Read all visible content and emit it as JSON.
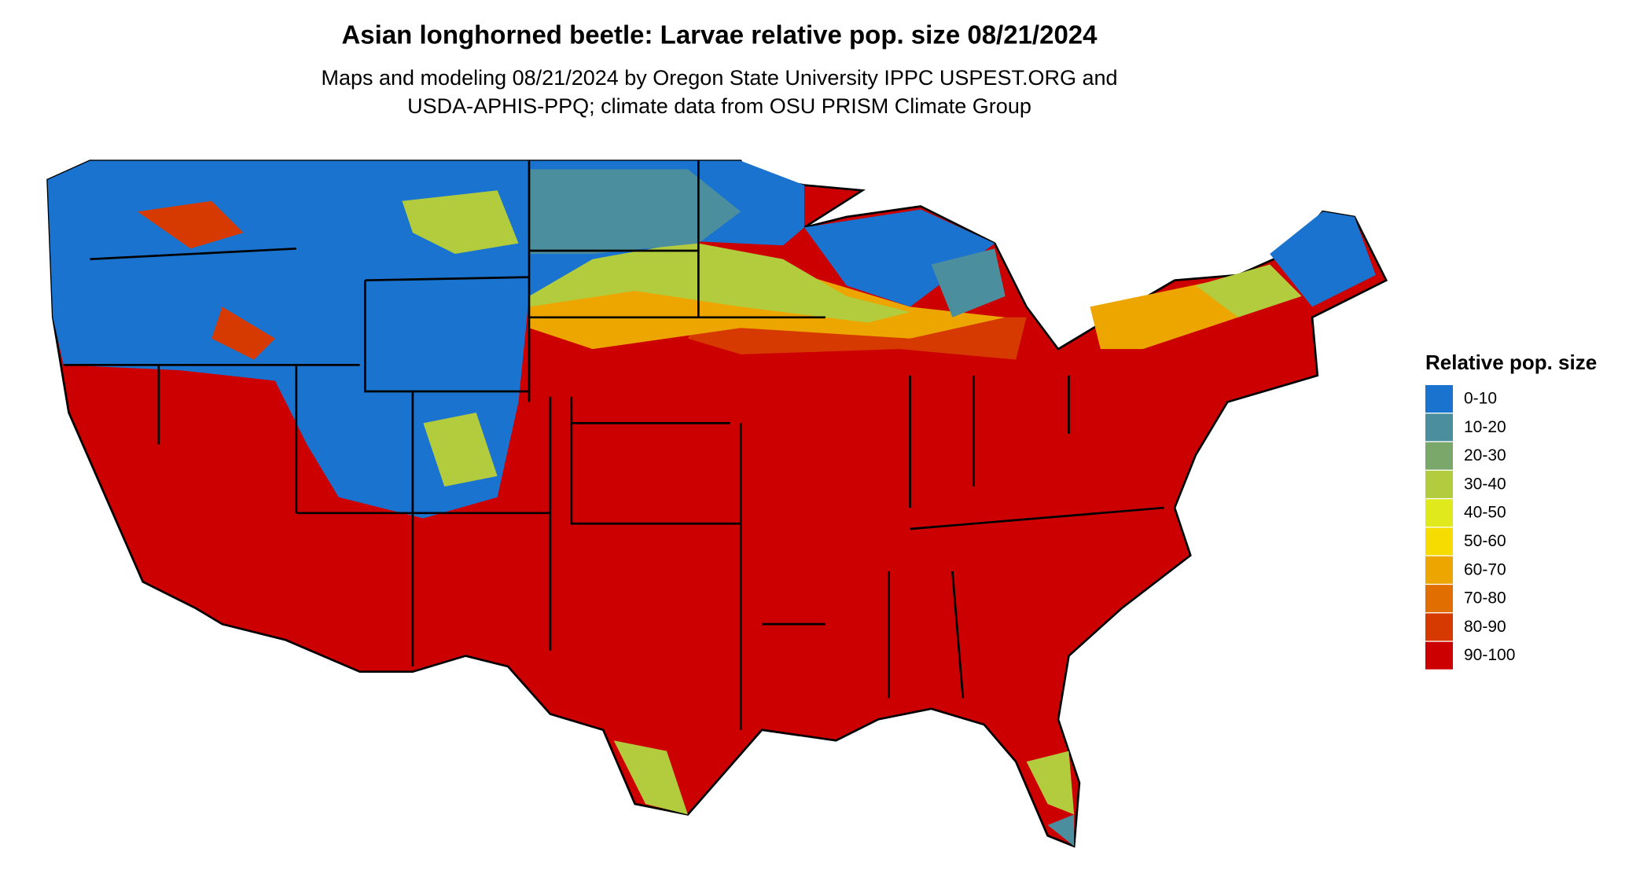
{
  "header": {
    "title": "Asian longhorned beetle: Larvae relative pop. size 08/21/2024",
    "subtitle": [
      "Maps and modeling 08/21/2024 by Oregon State University IPPC USPEST.ORG and",
      "USDA-APHIS-PPQ; climate data from OSU PRISM Climate Group"
    ]
  },
  "legend": {
    "title": "Relative pop. size",
    "items": [
      {
        "label": "0-10",
        "color": "#1a74cf"
      },
      {
        "label": "10-20",
        "color": "#4b8e9e"
      },
      {
        "label": "20-30",
        "color": "#7aa86a"
      },
      {
        "label": "30-40",
        "color": "#b3cc3e"
      },
      {
        "label": "40-50",
        "color": "#dfe91b"
      },
      {
        "label": "50-60",
        "color": "#f6dc00"
      },
      {
        "label": "60-70",
        "color": "#eda600"
      },
      {
        "label": "70-80",
        "color": "#e06e00"
      },
      {
        "label": "80-90",
        "color": "#d63a00"
      },
      {
        "label": "90-100",
        "color": "#cc0000"
      }
    ]
  }
}
